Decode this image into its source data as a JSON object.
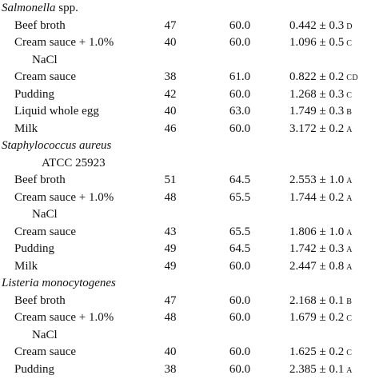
{
  "groups": [
    {
      "organism": "Salmonella",
      "organism_suffix": "spp.",
      "rows": [
        {
          "food": [
            "Beef broth"
          ],
          "n": "47",
          "temp": "60.0",
          "value": "0.442 ± 0.3",
          "letter": "D"
        },
        {
          "food": [
            "Cream sauce + 1.0%",
            "NaCl"
          ],
          "n": "40",
          "temp": "60.0",
          "value": "1.096 ± 0.5",
          "letter": "C"
        },
        {
          "food": [
            "Cream sauce"
          ],
          "n": "38",
          "temp": "61.0",
          "value": "0.822 ± 0.2",
          "letter": "CD"
        },
        {
          "food": [
            "Pudding"
          ],
          "n": "42",
          "temp": "60.0",
          "value": "1.268 ± 0.3",
          "letter": "C"
        },
        {
          "food": [
            "Liquid whole egg"
          ],
          "n": "40",
          "temp": "63.0",
          "value": "1.749 ± 0.3",
          "letter": "B"
        },
        {
          "food": [
            "Milk"
          ],
          "n": "46",
          "temp": "60.0",
          "value": "3.172 ± 0.2",
          "letter": "A"
        }
      ]
    },
    {
      "organism": "Staphylococcus aureus",
      "strain": "ATCC 25923",
      "rows": [
        {
          "food": [
            "Beef broth"
          ],
          "n": "51",
          "temp": "64.5",
          "value": "2.553 ± 1.0",
          "letter": "A"
        },
        {
          "food": [
            "Cream sauce + 1.0%",
            "NaCl"
          ],
          "n": "48",
          "temp": "65.5",
          "value": "1.744 ± 0.2",
          "letter": "A"
        },
        {
          "food": [
            "Cream sauce"
          ],
          "n": "43",
          "temp": "65.5",
          "value": "1.806 ± 1.0",
          "letter": "A"
        },
        {
          "food": [
            "Pudding"
          ],
          "n": "49",
          "temp": "64.5",
          "value": "1.742 ± 0.3",
          "letter": "A"
        },
        {
          "food": [
            "Milk"
          ],
          "n": "49",
          "temp": "60.0",
          "value": "2.447 ± 0.8",
          "letter": "A"
        }
      ]
    },
    {
      "organism": "Listeria monocytogenes",
      "rows": [
        {
          "food": [
            "Beef broth"
          ],
          "n": "47",
          "temp": "60.0",
          "value": "2.168 ± 0.1",
          "letter": "B"
        },
        {
          "food": [
            "Cream sauce + 1.0%",
            "NaCl"
          ],
          "n": "48",
          "temp": "60.0",
          "value": "1.679 ± 0.2",
          "letter": "C"
        },
        {
          "food": [
            "Cream sauce"
          ],
          "n": "40",
          "temp": "60.0",
          "value": "1.625 ± 0.2",
          "letter": "C"
        },
        {
          "food": [
            "Pudding"
          ],
          "n": "38",
          "temp": "60.0",
          "value": "2.385 ± 0.1",
          "letter": "A"
        }
      ]
    }
  ]
}
